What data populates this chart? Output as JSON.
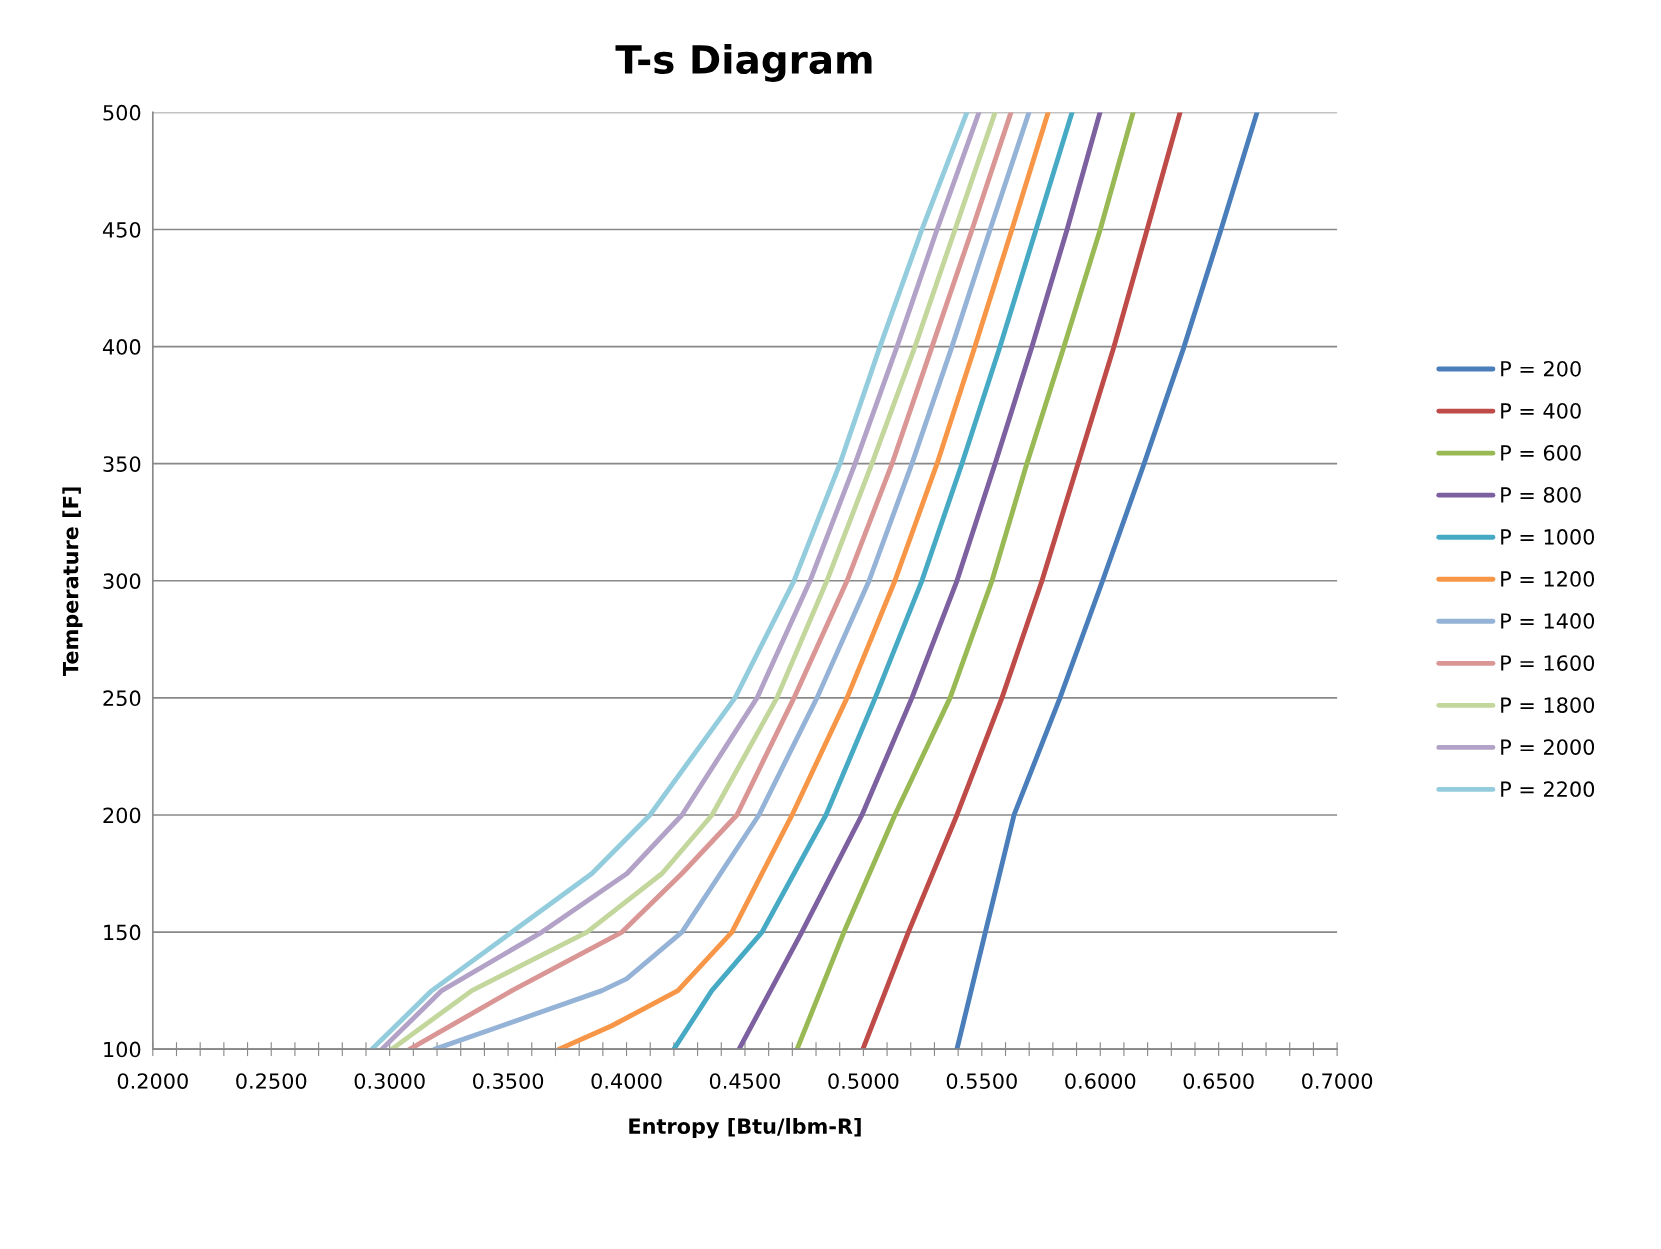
{
  "chart_data": {
    "type": "line",
    "title": "T-s Diagram",
    "xlabel": "Entropy [Btu/lbm-R]",
    "ylabel": "Temperature [F]",
    "xlim": [
      0.2,
      0.7
    ],
    "ylim": [
      100,
      500
    ],
    "xticks": [
      {
        "value": 0.2,
        "label": "0.2000"
      },
      {
        "value": 0.21,
        "label": null
      },
      {
        "value": 0.22,
        "label": null
      },
      {
        "value": 0.23,
        "label": null
      },
      {
        "value": 0.24,
        "label": null
      },
      {
        "value": 0.25,
        "label": "0.2500"
      },
      {
        "value": 0.26,
        "label": null
      },
      {
        "value": 0.27,
        "label": null
      },
      {
        "value": 0.28,
        "label": null
      },
      {
        "value": 0.29,
        "label": null
      },
      {
        "value": 0.3,
        "label": "0.3000"
      },
      {
        "value": 0.31,
        "label": null
      },
      {
        "value": 0.32,
        "label": null
      },
      {
        "value": 0.33,
        "label": null
      },
      {
        "value": 0.34,
        "label": null
      },
      {
        "value": 0.35,
        "label": "0.3500"
      },
      {
        "value": 0.36,
        "label": null
      },
      {
        "value": 0.37,
        "label": null
      },
      {
        "value": 0.38,
        "label": null
      },
      {
        "value": 0.39,
        "label": null
      },
      {
        "value": 0.4,
        "label": "0.4000"
      },
      {
        "value": 0.41,
        "label": null
      },
      {
        "value": 0.42,
        "label": null
      },
      {
        "value": 0.43,
        "label": null
      },
      {
        "value": 0.44,
        "label": null
      },
      {
        "value": 0.45,
        "label": "0.4500"
      },
      {
        "value": 0.46,
        "label": null
      },
      {
        "value": 0.47,
        "label": null
      },
      {
        "value": 0.48,
        "label": null
      },
      {
        "value": 0.49,
        "label": null
      },
      {
        "value": 0.5,
        "label": "0.5000"
      },
      {
        "value": 0.51,
        "label": null
      },
      {
        "value": 0.52,
        "label": null
      },
      {
        "value": 0.53,
        "label": null
      },
      {
        "value": 0.54,
        "label": null
      },
      {
        "value": 0.55,
        "label": "0.5500"
      },
      {
        "value": 0.56,
        "label": null
      },
      {
        "value": 0.57,
        "label": null
      },
      {
        "value": 0.58,
        "label": null
      },
      {
        "value": 0.59,
        "label": null
      },
      {
        "value": 0.6,
        "label": "0.6000"
      },
      {
        "value": 0.61,
        "label": null
      },
      {
        "value": 0.62,
        "label": null
      },
      {
        "value": 0.63,
        "label": null
      },
      {
        "value": 0.64,
        "label": null
      },
      {
        "value": 0.65,
        "label": "0.6500"
      },
      {
        "value": 0.66,
        "label": null
      },
      {
        "value": 0.67,
        "label": null
      },
      {
        "value": 0.68,
        "label": null
      },
      {
        "value": 0.69,
        "label": null
      },
      {
        "value": 0.7,
        "label": "0.7000"
      }
    ],
    "yticks": [
      100,
      150,
      200,
      250,
      300,
      350,
      400,
      450,
      500
    ],
    "grid": "y",
    "legend": "right",
    "marker": "none",
    "line_style": "solid",
    "series": [
      {
        "name": "P = 200",
        "color": "#4a7ebb",
        "x": [
          0.5395,
          0.5515,
          0.5636,
          0.583,
          0.601,
          0.6185,
          0.6354,
          0.651,
          0.6662
        ],
        "values": [
          100,
          150,
          200,
          250,
          300,
          350,
          400,
          450,
          500
        ]
      },
      {
        "name": "P = 400",
        "color": "#be4b48",
        "x": [
          0.4998,
          0.519,
          0.5395,
          0.5585,
          0.5754,
          0.5906,
          0.6058,
          0.6198,
          0.6337
        ],
        "values": [
          100,
          150,
          200,
          250,
          300,
          350,
          400,
          450,
          500
        ]
      },
      {
        "name": "P = 600",
        "color": "#98b954",
        "x": [
          0.472,
          0.4918,
          0.5133,
          0.5366,
          0.5543,
          0.569,
          0.5847,
          0.6,
          0.6139
        ],
        "values": [
          100,
          150,
          200,
          250,
          300,
          350,
          400,
          450,
          500
        ]
      },
      {
        "name": "P = 800",
        "color": "#7d60a0",
        "x": [
          0.4475,
          0.474,
          0.4994,
          0.5205,
          0.5395,
          0.5556,
          0.5712,
          0.586,
          0.5999
        ],
        "values": [
          100,
          150,
          200,
          250,
          300,
          350,
          400,
          450,
          500
        ]
      },
      {
        "name": "P = 1000",
        "color": "#46aac5",
        "x": [
          0.42,
          0.436,
          0.4572,
          0.4842,
          0.505,
          0.5247,
          0.5416,
          0.5577,
          0.5729,
          0.5881
        ],
        "values": [
          100,
          125,
          150,
          200,
          250,
          300,
          350,
          400,
          450,
          500
        ]
      },
      {
        "name": "P = 1200",
        "color": "#f79646",
        "x": [
          0.3715,
          0.3938,
          0.4217,
          0.4445,
          0.4699,
          0.4931,
          0.5133,
          0.5311,
          0.5471,
          0.5627,
          0.578
        ],
        "values": [
          100,
          110,
          125,
          150,
          200,
          250,
          300,
          350,
          400,
          450,
          500
        ]
      },
      {
        "name": "P = 1400",
        "color": "#95b3d7",
        "x": [
          0.3191,
          0.3474,
          0.3896,
          0.4,
          0.4234,
          0.4559,
          0.4804,
          0.5024,
          0.5205,
          0.5374,
          0.5535,
          0.5699
        ],
        "values": [
          100,
          110,
          125,
          130,
          150,
          200,
          250,
          300,
          350,
          400,
          450,
          500
        ]
      },
      {
        "name": "P = 1600",
        "color": "#d99694",
        "x": [
          0.3085,
          0.3516,
          0.3981,
          0.4234,
          0.4466,
          0.4707,
          0.4931,
          0.5121,
          0.529,
          0.5459,
          0.5623
        ],
        "values": [
          100,
          125,
          150,
          175,
          200,
          250,
          300,
          350,
          400,
          450,
          500
        ]
      },
      {
        "name": "P = 1800",
        "color": "#c3d69b",
        "x": [
          0.3009,
          0.3347,
          0.3833,
          0.415,
          0.4361,
          0.4635,
          0.4846,
          0.5036,
          0.5218,
          0.5387,
          0.5556
        ],
        "values": [
          100,
          125,
          150,
          175,
          200,
          250,
          300,
          350,
          400,
          450,
          500
        ]
      },
      {
        "name": "P = 2000",
        "color": "#b3a2c7",
        "x": [
          0.2967,
          0.322,
          0.3643,
          0.4002,
          0.4234,
          0.4551,
          0.4775,
          0.4965,
          0.5142,
          0.5311,
          0.5488
        ],
        "values": [
          100,
          125,
          150,
          175,
          200,
          250,
          300,
          350,
          400,
          450,
          500
        ]
      },
      {
        "name": "P = 2200",
        "color": "#93cddd",
        "x": [
          0.2925,
          0.3178,
          0.3516,
          0.3854,
          0.4099,
          0.4458,
          0.4707,
          0.4901,
          0.507,
          0.5247,
          0.5437
        ],
        "values": [
          100,
          125,
          150,
          175,
          200,
          250,
          300,
          350,
          400,
          450,
          500
        ]
      }
    ]
  }
}
